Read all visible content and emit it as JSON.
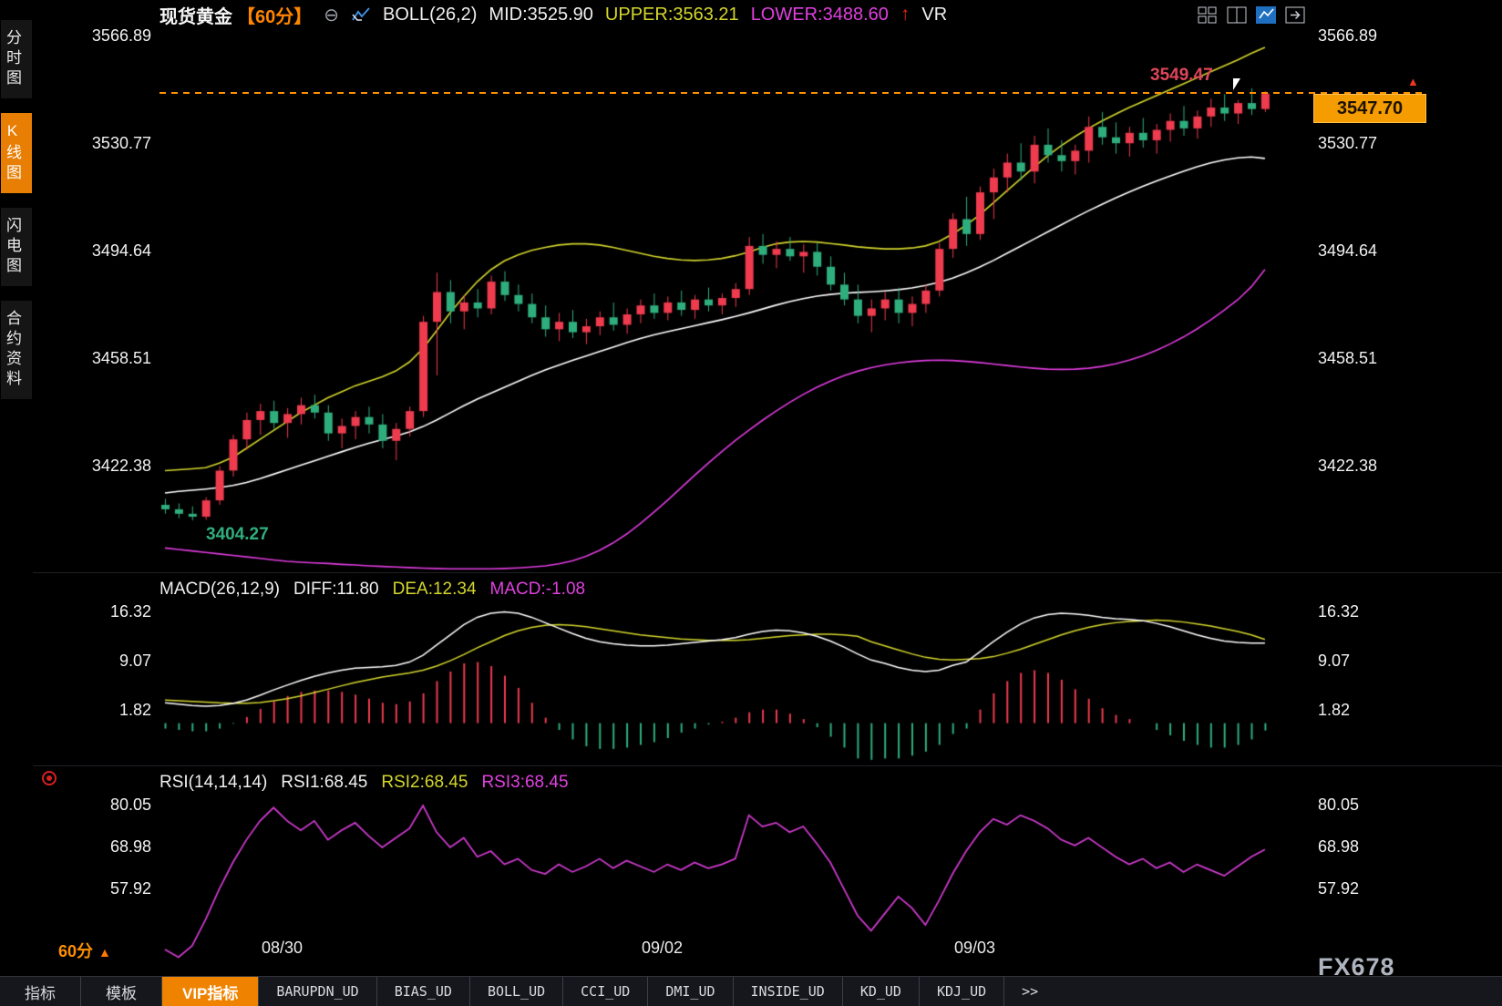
{
  "sidebar": {
    "items": [
      {
        "label": "分时图"
      },
      {
        "label": "K线图",
        "active": true
      },
      {
        "label": "闪电图"
      },
      {
        "label": "合约资料"
      }
    ]
  },
  "header": {
    "symbol": "现货黄金",
    "period": "【60分】",
    "indicator": "BOLL(26,2)",
    "mid": "MID:3525.90",
    "upper": "UPPER:3563.21",
    "lower": "LOWER:3488.60",
    "vr": "VR"
  },
  "price_tag": {
    "value": "3547.70"
  },
  "annotations": {
    "high": "3549.47",
    "low": "3404.27"
  },
  "macd_panel": {
    "title": "MACD(26,12,9)",
    "diff_label": "DIFF:11.80",
    "dea_label": "DEA:12.34",
    "macd_label": "MACD:-1.08"
  },
  "rsi_panel": {
    "title": "RSI(14,14,14)",
    "rsi1": "RSI1:68.45",
    "rsi2": "RSI2:68.45",
    "rsi3": "RSI3:68.45"
  },
  "footer": {
    "period": "60分",
    "period_arrow": "▲",
    "watermark": "FX678",
    "tabs": [
      {
        "label": "指标"
      },
      {
        "label": "模板"
      },
      {
        "label": "VIP指标",
        "active": true
      },
      {
        "label": "BARUPDN_UD"
      },
      {
        "label": "BIAS_UD"
      },
      {
        "label": "BOLL_UD"
      },
      {
        "label": "CCI_UD"
      },
      {
        "label": "DMI_UD"
      },
      {
        "label": "INSIDE_UD"
      },
      {
        "label": "KD_UD"
      },
      {
        "label": "KDJ_UD"
      },
      {
        "label": ">>"
      }
    ]
  },
  "chart_data": {
    "type": "candlestick",
    "symbol": "现货黄金",
    "period": "60分",
    "x_ticks": [
      {
        "label": "08/30",
        "i": 9
      },
      {
        "label": "09/02",
        "i": 37
      },
      {
        "label": "09/03",
        "i": 60
      }
    ],
    "main": {
      "y_ticks": [
        3566.89,
        3530.77,
        3494.64,
        3458.51,
        3422.38
      ],
      "last_price": 3547.7,
      "high_label": 3549.47,
      "low_label": 3404.27,
      "boll": {
        "mid_value": 3525.9,
        "upper_value": 3563.21,
        "lower_value": 3488.6,
        "upper": [
          3421.0,
          3421.3,
          3421.6,
          3422.0,
          3423.5,
          3425.5,
          3428.5,
          3431.5,
          3434.5,
          3437.5,
          3440.5,
          3443.0,
          3445.5,
          3447.5,
          3449.5,
          3451.0,
          3452.5,
          3454.5,
          3457.5,
          3462.0,
          3468.0,
          3474.0,
          3479.5,
          3484.5,
          3488.5,
          3491.5,
          3493.5,
          3495.0,
          3496.0,
          3496.8,
          3497.2,
          3497.2,
          3496.8,
          3496.0,
          3495.0,
          3494.0,
          3493.0,
          3492.3,
          3491.8,
          3491.6,
          3491.8,
          3492.3,
          3493.2,
          3494.5,
          3496.0,
          3497.2,
          3497.8,
          3498.0,
          3497.8,
          3497.3,
          3496.8,
          3496.2,
          3495.8,
          3495.5,
          3495.5,
          3495.8,
          3496.5,
          3498.0,
          3500.5,
          3503.5,
          3507.0,
          3511.0,
          3515.0,
          3519.0,
          3523.0,
          3526.8,
          3530.2,
          3533.2,
          3536.0,
          3538.5,
          3540.8,
          3543.0,
          3545.0,
          3547.0,
          3549.0,
          3551.0,
          3553.0,
          3555.0,
          3557.0,
          3559.0,
          3561.2,
          3563.21
        ],
        "mid": [
          3413.5,
          3414.0,
          3414.4,
          3414.8,
          3415.3,
          3416.0,
          3417.0,
          3418.3,
          3419.8,
          3421.3,
          3422.8,
          3424.3,
          3425.8,
          3427.3,
          3428.8,
          3430.2,
          3431.4,
          3432.6,
          3434.0,
          3435.8,
          3438.0,
          3440.4,
          3442.8,
          3445.0,
          3447.0,
          3449.0,
          3451.0,
          3453.0,
          3454.8,
          3456.4,
          3458.0,
          3459.5,
          3461.0,
          3462.5,
          3464.0,
          3465.4,
          3466.6,
          3467.7,
          3468.7,
          3469.7,
          3470.7,
          3471.7,
          3472.8,
          3474.0,
          3475.3,
          3476.6,
          3477.8,
          3478.8,
          3479.6,
          3480.2,
          3480.6,
          3480.9,
          3481.1,
          3481.4,
          3481.8,
          3482.4,
          3483.2,
          3484.3,
          3485.7,
          3487.4,
          3489.4,
          3491.6,
          3494.0,
          3496.4,
          3498.8,
          3501.2,
          3503.6,
          3506.0,
          3508.3,
          3510.5,
          3512.6,
          3514.6,
          3516.5,
          3518.3,
          3520.0,
          3521.6,
          3523.1,
          3524.4,
          3525.4,
          3526.1,
          3526.4,
          3525.9
        ],
        "lower": [
          3395.0,
          3394.5,
          3394.0,
          3393.5,
          3393.0,
          3392.5,
          3392.0,
          3391.5,
          3391.0,
          3390.5,
          3390.2,
          3390.0,
          3389.8,
          3389.5,
          3389.3,
          3389.0,
          3388.8,
          3388.6,
          3388.4,
          3388.2,
          3388.1,
          3388.0,
          3388.0,
          3388.0,
          3388.0,
          3388.1,
          3388.3,
          3388.6,
          3389.0,
          3389.7,
          3390.7,
          3392.2,
          3394.2,
          3396.7,
          3399.7,
          3403.2,
          3407.0,
          3411.0,
          3415.2,
          3419.4,
          3423.5,
          3427.4,
          3431.1,
          3434.6,
          3437.9,
          3441.0,
          3443.9,
          3446.6,
          3449.0,
          3451.1,
          3452.9,
          3454.4,
          3455.6,
          3456.5,
          3457.2,
          3457.7,
          3458.0,
          3458.1,
          3458.0,
          3457.7,
          3457.3,
          3456.8,
          3456.3,
          3455.8,
          3455.4,
          3455.1,
          3455.0,
          3455.1,
          3455.4,
          3456.0,
          3456.9,
          3458.1,
          3459.6,
          3461.4,
          3463.5,
          3465.9,
          3468.6,
          3471.6,
          3474.9,
          3478.4,
          3482.8,
          3488.6
        ]
      },
      "candles": [
        [
          3409.5,
          3411.5,
          3406.5,
          3408.0
        ],
        [
          3408.0,
          3410.0,
          3405.0,
          3406.5
        ],
        [
          3406.5,
          3409.0,
          3404.27,
          3405.5
        ],
        [
          3405.5,
          3412.0,
          3404.5,
          3411.0
        ],
        [
          3411.0,
          3422.5,
          3409.5,
          3421.0
        ],
        [
          3421.0,
          3433.0,
          3419.0,
          3431.5
        ],
        [
          3431.5,
          3440.5,
          3428.0,
          3438.0
        ],
        [
          3438.0,
          3443.5,
          3433.0,
          3441.0
        ],
        [
          3441.0,
          3444.5,
          3435.0,
          3437.0
        ],
        [
          3437.0,
          3442.0,
          3432.0,
          3440.0
        ],
        [
          3440.0,
          3445.5,
          3436.5,
          3443.0
        ],
        [
          3443.0,
          3446.5,
          3438.5,
          3440.5
        ],
        [
          3440.5,
          3443.0,
          3431.0,
          3433.5
        ],
        [
          3433.5,
          3438.5,
          3428.5,
          3436.0
        ],
        [
          3436.0,
          3441.0,
          3431.5,
          3439.0
        ],
        [
          3439.0,
          3442.5,
          3433.5,
          3436.5
        ],
        [
          3436.5,
          3440.0,
          3428.5,
          3431.0
        ],
        [
          3431.0,
          3437.0,
          3424.5,
          3435.0
        ],
        [
          3435.0,
          3442.5,
          3432.5,
          3441.0
        ],
        [
          3441.0,
          3473.0,
          3439.0,
          3471.0
        ],
        [
          3471.0,
          3487.5,
          3453.0,
          3481.0
        ],
        [
          3481.0,
          3485.0,
          3470.5,
          3474.5
        ],
        [
          3474.5,
          3480.0,
          3468.5,
          3477.5
        ],
        [
          3477.5,
          3482.0,
          3472.5,
          3475.5
        ],
        [
          3475.5,
          3486.5,
          3473.5,
          3484.5
        ],
        [
          3484.5,
          3488.0,
          3478.0,
          3480.0
        ],
        [
          3480.0,
          3483.5,
          3474.5,
          3477.0
        ],
        [
          3477.0,
          3480.5,
          3470.5,
          3472.5
        ],
        [
          3472.5,
          3476.5,
          3466.0,
          3468.5
        ],
        [
          3468.5,
          3474.0,
          3464.5,
          3471.0
        ],
        [
          3471.0,
          3475.0,
          3465.5,
          3467.5
        ],
        [
          3467.5,
          3472.0,
          3463.5,
          3469.5
        ],
        [
          3469.5,
          3474.5,
          3466.5,
          3472.5
        ],
        [
          3472.5,
          3477.5,
          3468.0,
          3470.0
        ],
        [
          3470.0,
          3475.5,
          3467.0,
          3473.5
        ],
        [
          3473.5,
          3478.5,
          3470.5,
          3476.5
        ],
        [
          3476.5,
          3480.5,
          3472.0,
          3474.0
        ],
        [
          3474.0,
          3479.5,
          3471.5,
          3477.5
        ],
        [
          3477.5,
          3481.5,
          3473.0,
          3475.0
        ],
        [
          3475.0,
          3480.0,
          3472.0,
          3478.5
        ],
        [
          3478.5,
          3482.5,
          3474.5,
          3476.5
        ],
        [
          3476.5,
          3480.5,
          3473.5,
          3479.0
        ],
        [
          3479.0,
          3484.0,
          3476.0,
          3482.0
        ],
        [
          3482.0,
          3499.5,
          3480.0,
          3496.5
        ],
        [
          3496.5,
          3500.5,
          3490.5,
          3493.5
        ],
        [
          3493.5,
          3498.0,
          3489.0,
          3495.5
        ],
        [
          3495.5,
          3499.5,
          3491.5,
          3493.0
        ],
        [
          3493.0,
          3497.0,
          3487.5,
          3494.5
        ],
        [
          3494.5,
          3497.5,
          3486.5,
          3489.5
        ],
        [
          3489.5,
          3493.0,
          3481.5,
          3483.5
        ],
        [
          3483.5,
          3487.5,
          3476.5,
          3478.5
        ],
        [
          3478.5,
          3483.5,
          3470.5,
          3473.0
        ],
        [
          3473.0,
          3478.5,
          3467.5,
          3475.5
        ],
        [
          3475.5,
          3481.0,
          3471.5,
          3478.5
        ],
        [
          3478.5,
          3482.5,
          3470.5,
          3474.0
        ],
        [
          3474.0,
          3479.5,
          3469.5,
          3477.0
        ],
        [
          3477.0,
          3483.5,
          3474.0,
          3481.5
        ],
        [
          3481.5,
          3497.5,
          3479.5,
          3495.5
        ],
        [
          3495.5,
          3507.5,
          3492.5,
          3505.5
        ],
        [
          3505.5,
          3513.0,
          3496.5,
          3500.5
        ],
        [
          3500.5,
          3516.5,
          3498.5,
          3514.5
        ],
        [
          3514.5,
          3522.5,
          3505.5,
          3519.5
        ],
        [
          3519.5,
          3527.5,
          3514.5,
          3524.5
        ],
        [
          3524.5,
          3531.0,
          3518.5,
          3521.5
        ],
        [
          3521.5,
          3533.5,
          3517.5,
          3530.5
        ],
        [
          3530.5,
          3536.0,
          3524.5,
          3527.0
        ],
        [
          3527.0,
          3532.0,
          3521.5,
          3525.0
        ],
        [
          3525.0,
          3530.5,
          3520.5,
          3528.5
        ],
        [
          3528.5,
          3540.0,
          3524.5,
          3536.5
        ],
        [
          3536.5,
          3541.5,
          3530.5,
          3533.0
        ],
        [
          3533.0,
          3538.0,
          3527.5,
          3531.0
        ],
        [
          3531.0,
          3536.5,
          3526.5,
          3534.5
        ],
        [
          3534.5,
          3539.5,
          3529.5,
          3532.0
        ],
        [
          3532.0,
          3537.5,
          3527.5,
          3535.5
        ],
        [
          3535.5,
          3541.0,
          3531.5,
          3538.5
        ],
        [
          3538.5,
          3543.5,
          3533.5,
          3536.0
        ],
        [
          3536.0,
          3542.0,
          3532.5,
          3540.0
        ],
        [
          3540.0,
          3546.0,
          3536.5,
          3543.0
        ],
        [
          3543.0,
          3547.5,
          3538.5,
          3541.0
        ],
        [
          3541.0,
          3545.5,
          3537.5,
          3544.5
        ],
        [
          3544.5,
          3549.47,
          3540.5,
          3542.5
        ],
        [
          3542.5,
          3548.5,
          3541.5,
          3547.7
        ]
      ]
    },
    "macd": {
      "y_ticks": [
        16.32,
        9.07,
        1.82
      ],
      "diff_value": 11.8,
      "dea_value": 12.34,
      "macd_value": -1.08,
      "diff": [
        3.0,
        2.8,
        2.6,
        2.5,
        2.6,
        2.9,
        3.4,
        4.1,
        4.9,
        5.6,
        6.3,
        6.9,
        7.4,
        7.8,
        8.1,
        8.2,
        8.3,
        8.5,
        9.0,
        10.0,
        11.5,
        13.0,
        14.5,
        15.6,
        16.2,
        16.4,
        16.2,
        15.6,
        14.8,
        14.0,
        13.2,
        12.5,
        12.0,
        11.7,
        11.5,
        11.4,
        11.4,
        11.5,
        11.7,
        11.9,
        12.1,
        12.3,
        12.6,
        13.1,
        13.5,
        13.7,
        13.6,
        13.3,
        12.8,
        12.1,
        11.2,
        10.2,
        9.3,
        8.8,
        8.2,
        7.8,
        7.6,
        7.8,
        8.5,
        9.0,
        10.5,
        12.0,
        13.4,
        14.6,
        15.5,
        16.0,
        16.2,
        16.1,
        15.9,
        15.6,
        15.4,
        15.3,
        15.1,
        14.7,
        14.2,
        13.6,
        13.0,
        12.5,
        12.1,
        11.9,
        11.8,
        11.8
      ],
      "dea": [
        3.4,
        3.3,
        3.2,
        3.1,
        3.0,
        2.95,
        2.95,
        3.05,
        3.3,
        3.6,
        4.0,
        4.5,
        5.0,
        5.5,
        6.0,
        6.4,
        6.8,
        7.1,
        7.4,
        7.8,
        8.4,
        9.2,
        10.1,
        11.1,
        12.0,
        12.9,
        13.6,
        14.1,
        14.4,
        14.5,
        14.4,
        14.2,
        13.9,
        13.6,
        13.3,
        13.0,
        12.8,
        12.6,
        12.4,
        12.3,
        12.2,
        12.2,
        12.2,
        12.3,
        12.5,
        12.7,
        12.9,
        13.0,
        13.1,
        13.1,
        13.0,
        12.8,
        12.0,
        11.4,
        10.8,
        10.2,
        9.7,
        9.4,
        9.3,
        9.4,
        9.5,
        9.8,
        10.3,
        10.9,
        11.6,
        12.3,
        13.0,
        13.6,
        14.1,
        14.5,
        14.8,
        15.0,
        15.1,
        15.2,
        15.1,
        14.9,
        14.6,
        14.3,
        13.9,
        13.5,
        13.0,
        12.34
      ]
    },
    "rsi": {
      "y_ticks": [
        80.05,
        68.98,
        57.92
      ],
      "rsi1_value": 68.45,
      "rsi2_value": 68.45,
      "rsi3_value": 68.45,
      "values": [
        42,
        40,
        43,
        50,
        58,
        65,
        71,
        76,
        79.5,
        76,
        73.5,
        76,
        71,
        73.5,
        75.5,
        72,
        69,
        71.5,
        74,
        80.05,
        73,
        69,
        71.5,
        66.5,
        68,
        64.5,
        66,
        63,
        62,
        64.5,
        62.5,
        64,
        66,
        63.5,
        65.5,
        64,
        62.5,
        64.5,
        63,
        65,
        63.5,
        64.5,
        66,
        77.5,
        74.5,
        75.5,
        73,
        74.5,
        70,
        65,
        58,
        51,
        47,
        51.5,
        56,
        53,
        48.5,
        55,
        62,
        68,
        73,
        76.5,
        75,
        77.5,
        76,
        74,
        71,
        69.5,
        71.5,
        69,
        66.5,
        64.5,
        66,
        63.5,
        65,
        62.5,
        64.5,
        63,
        61.5,
        64,
        66.5,
        68.45
      ]
    },
    "colors": {
      "up": "#ee3b4e",
      "down": "#2fae7d",
      "boll_upper": "#d4d62c",
      "boll_mid": "#ffffff",
      "boll_lower": "#e03ce0",
      "macd_diff": "#ffffff",
      "macd_dea": "#d4d62c",
      "rsi": "#d43cd4",
      "last_price_line": "#ff9000"
    }
  }
}
